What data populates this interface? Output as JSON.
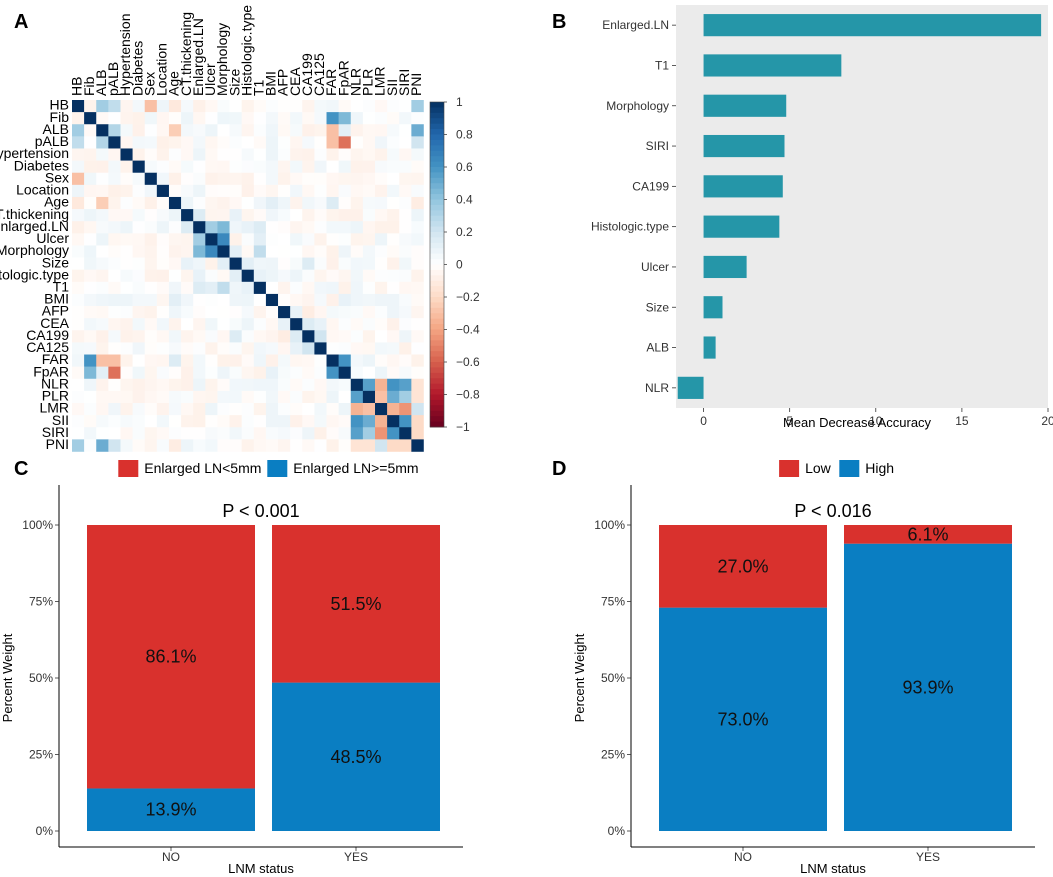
{
  "panels": {
    "A": "A",
    "B": "B",
    "C": "C",
    "D": "D"
  },
  "colors": {
    "heat_neg": "#67001f",
    "heat_mid": "#ffffff",
    "heat_pos": "#053061",
    "bar_b": "#2596a8",
    "panel_bg_b": "#ebebeb",
    "red": "#d9312d",
    "blue": "#0a7ec2"
  },
  "chart_data": [
    {
      "id": "A",
      "type": "heatmap",
      "title": "",
      "variables": [
        "HB",
        "Fib",
        "ALB",
        "pALB",
        "Hypertension",
        "Diabetes",
        "Sex",
        "Location",
        "Age",
        "CT.thickening",
        "Enlarged.LN",
        "Ulcer",
        "Morphology",
        "Size",
        "Histologic.type",
        "T1",
        "BMI",
        "AFP",
        "CEA",
        "CA199",
        "CA125",
        "FAR",
        "FpAR",
        "NLR",
        "PLR",
        "LMR",
        "SII",
        "SIRI",
        "PNI"
      ],
      "colorbar_ticks": [
        1,
        0.8,
        0.6,
        0.4,
        0.2,
        0,
        -0.2,
        -0.4,
        -0.6,
        -0.8,
        -1
      ],
      "colorbar_labels": [
        "1",
        "0.8",
        "0.6",
        "0.4",
        "0.2",
        "0",
        "−0.2",
        "−0.4",
        "−0.6",
        "−0.8",
        "−1"
      ],
      "cells": [
        [
          0,
          2,
          0.35
        ],
        [
          0,
          3,
          0.25
        ],
        [
          0,
          6,
          -0.3
        ],
        [
          0,
          8,
          -0.12
        ],
        [
          0,
          28,
          0.35
        ],
        [
          1,
          21,
          0.6
        ],
        [
          1,
          22,
          0.45
        ],
        [
          2,
          3,
          0.3
        ],
        [
          2,
          8,
          -0.25
        ],
        [
          2,
          21,
          -0.3
        ],
        [
          2,
          22,
          0.12
        ],
        [
          2,
          28,
          0.5
        ],
        [
          3,
          21,
          -0.3
        ],
        [
          3,
          22,
          -0.55
        ],
        [
          3,
          28,
          0.2
        ],
        [
          6,
          8,
          -0.08
        ],
        [
          8,
          9,
          0.08
        ],
        [
          8,
          16,
          0.12
        ],
        [
          8,
          21,
          0.15
        ],
        [
          8,
          28,
          -0.1
        ],
        [
          9,
          10,
          0.15
        ],
        [
          9,
          13,
          0.1
        ],
        [
          10,
          11,
          0.35
        ],
        [
          10,
          12,
          0.45
        ],
        [
          10,
          14,
          0.1
        ],
        [
          10,
          15,
          0.15
        ],
        [
          11,
          12,
          0.65
        ],
        [
          11,
          15,
          0.12
        ],
        [
          12,
          13,
          0.12
        ],
        [
          12,
          15,
          0.25
        ],
        [
          13,
          14,
          0.12
        ],
        [
          13,
          19,
          0.15
        ],
        [
          14,
          15,
          0.1
        ],
        [
          16,
          22,
          0.1
        ],
        [
          17,
          18,
          0.1
        ],
        [
          17,
          19,
          -0.1
        ],
        [
          18,
          19,
          0.15
        ],
        [
          18,
          20,
          0.1
        ],
        [
          19,
          20,
          0.2
        ],
        [
          21,
          22,
          0.6
        ],
        [
          23,
          24,
          0.55
        ],
        [
          23,
          25,
          -0.35
        ],
        [
          23,
          26,
          0.6
        ],
        [
          23,
          27,
          0.55
        ],
        [
          23,
          28,
          -0.15
        ],
        [
          24,
          25,
          -0.3
        ],
        [
          24,
          26,
          0.5
        ],
        [
          24,
          27,
          0.35
        ],
        [
          24,
          28,
          -0.15
        ],
        [
          25,
          26,
          -0.35
        ],
        [
          25,
          27,
          -0.45
        ],
        [
          25,
          28,
          0.2
        ],
        [
          26,
          27,
          0.6
        ],
        [
          26,
          28,
          -0.2
        ],
        [
          27,
          28,
          -0.2
        ]
      ]
    },
    {
      "id": "B",
      "type": "bar",
      "orientation": "horizontal",
      "categories": [
        "Enlarged.LN",
        "T1",
        "Morphology",
        "SIRI",
        "CA199",
        "Histologic.type",
        "Ulcer",
        "Size",
        "ALB",
        "NLR"
      ],
      "values": [
        19.6,
        8.0,
        4.8,
        4.7,
        4.6,
        4.4,
        2.5,
        1.1,
        0.7,
        -1.5
      ],
      "xlabel": "Mean Decrease Accuracy",
      "xlim": [
        -1.6,
        20
      ],
      "xticks": [
        0,
        5,
        10,
        15,
        20
      ],
      "xtick_labels": [
        "0",
        "5",
        "10",
        "15",
        "20"
      ]
    },
    {
      "id": "C",
      "type": "bar",
      "stacked": true,
      "categories": [
        "NO",
        "YES"
      ],
      "series": [
        {
          "name": "Enlarged LN<5mm",
          "values": [
            86.1,
            51.5
          ],
          "labels": [
            "86.1%",
            "51.5%"
          ],
          "color": "#d9312d"
        },
        {
          "name": "Enlarged LN>=5mm",
          "values": [
            13.9,
            48.5
          ],
          "labels": [
            "13.9%",
            "48.5%"
          ],
          "color": "#0a7ec2"
        }
      ],
      "annotation": "P < 0.001",
      "xlabel": "LNM status",
      "ylabel": "Percent Weight",
      "ylim": [
        0,
        100
      ],
      "yticks": [
        0,
        25,
        50,
        75,
        100
      ],
      "ytick_labels": [
        "0%",
        "25%",
        "50%",
        "75%",
        "100%"
      ]
    },
    {
      "id": "D",
      "type": "bar",
      "stacked": true,
      "categories": [
        "NO",
        "YES"
      ],
      "series": [
        {
          "name": "Low",
          "values": [
            27.0,
            6.1
          ],
          "labels": [
            "27.0%",
            "6.1%"
          ],
          "color": "#d9312d"
        },
        {
          "name": "High",
          "values": [
            73.0,
            93.9
          ],
          "labels": [
            "73.0%",
            "93.9%"
          ],
          "color": "#0a7ec2"
        }
      ],
      "annotation": "P < 0.016",
      "xlabel": "LNM status",
      "ylabel": "Percent Weight",
      "ylim": [
        0,
        100
      ],
      "yticks": [
        0,
        25,
        50,
        75,
        100
      ],
      "ytick_labels": [
        "0%",
        "25%",
        "50%",
        "75%",
        "100%"
      ]
    }
  ]
}
